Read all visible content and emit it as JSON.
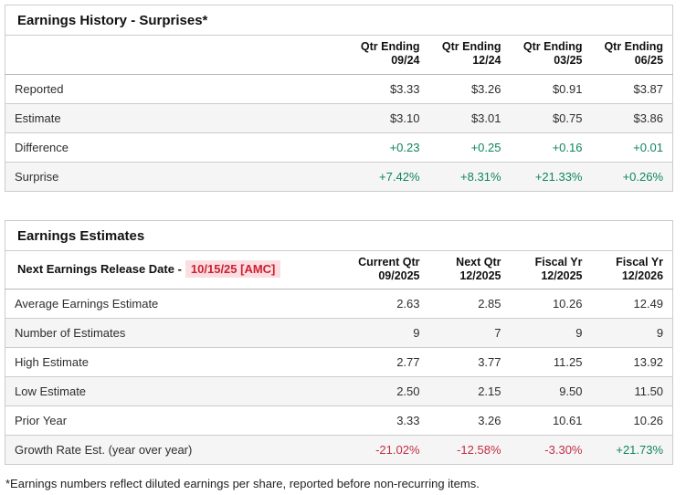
{
  "colors": {
    "positive": "#0e8462",
    "negative": "#c12f45",
    "date_red": "#ce1f2f",
    "date_bg": "#fbdee1",
    "row_alt_bg": "#f5f5f5",
    "border": "#cccccc",
    "text": "#2e2e2e"
  },
  "earnings_history": {
    "title": "Earnings History - Surprises*",
    "columns": [
      {
        "line1": "Qtr Ending",
        "line2": "09/24"
      },
      {
        "line1": "Qtr Ending",
        "line2": "12/24"
      },
      {
        "line1": "Qtr Ending",
        "line2": "03/25"
      },
      {
        "line1": "Qtr Ending",
        "line2": "06/25"
      }
    ],
    "rows": [
      {
        "label": "Reported",
        "values": [
          "$3.33",
          "$3.26",
          "$0.91",
          "$3.87"
        ],
        "tones": [
          "normal",
          "normal",
          "normal",
          "normal"
        ]
      },
      {
        "label": "Estimate",
        "values": [
          "$3.10",
          "$3.01",
          "$0.75",
          "$3.86"
        ],
        "tones": [
          "normal",
          "normal",
          "normal",
          "normal"
        ]
      },
      {
        "label": "Difference",
        "values": [
          "+0.23",
          "+0.25",
          "+0.16",
          "+0.01"
        ],
        "tones": [
          "pos",
          "pos",
          "pos",
          "pos"
        ]
      },
      {
        "label": "Surprise",
        "values": [
          "+7.42%",
          "+8.31%",
          "+21.33%",
          "+0.26%"
        ],
        "tones": [
          "pos",
          "pos",
          "pos",
          "pos"
        ]
      }
    ]
  },
  "earnings_estimates": {
    "title": "Earnings Estimates",
    "release_label": "Next Earnings Release Date -",
    "release_date": "10/15/25 [AMC]",
    "columns": [
      {
        "line1": "Current Qtr",
        "line2": "09/2025"
      },
      {
        "line1": "Next Qtr",
        "line2": "12/2025"
      },
      {
        "line1": "Fiscal Yr",
        "line2": "12/2025"
      },
      {
        "line1": "Fiscal Yr",
        "line2": "12/2026"
      }
    ],
    "rows": [
      {
        "label": "Average Earnings Estimate",
        "values": [
          "2.63",
          "2.85",
          "10.26",
          "12.49"
        ],
        "tones": [
          "normal",
          "normal",
          "normal",
          "normal"
        ]
      },
      {
        "label": "Number of Estimates",
        "values": [
          "9",
          "7",
          "9",
          "9"
        ],
        "tones": [
          "normal",
          "normal",
          "normal",
          "normal"
        ]
      },
      {
        "label": "High Estimate",
        "values": [
          "2.77",
          "3.77",
          "11.25",
          "13.92"
        ],
        "tones": [
          "normal",
          "normal",
          "normal",
          "normal"
        ]
      },
      {
        "label": "Low Estimate",
        "values": [
          "2.50",
          "2.15",
          "9.50",
          "11.50"
        ],
        "tones": [
          "normal",
          "normal",
          "normal",
          "normal"
        ]
      },
      {
        "label": "Prior Year",
        "values": [
          "3.33",
          "3.26",
          "10.61",
          "10.26"
        ],
        "tones": [
          "normal",
          "normal",
          "normal",
          "normal"
        ]
      },
      {
        "label": "Growth Rate Est. (year over year)",
        "values": [
          "-21.02%",
          "-12.58%",
          "-3.30%",
          "+21.73%"
        ],
        "tones": [
          "neg",
          "neg",
          "neg",
          "pos"
        ]
      }
    ]
  },
  "page": {
    "footnote": "*Earnings numbers reflect diluted earnings per share, reported before non-recurring items."
  }
}
